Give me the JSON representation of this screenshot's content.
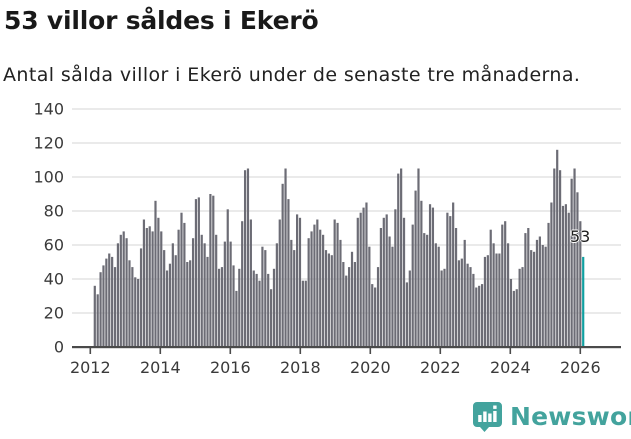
{
  "header": {
    "title": "53 villor såldes i Ekerö",
    "subtitle": "Antal sålda villor i Ekerö under de senaste tre månaderna."
  },
  "chart_data": {
    "type": "bar",
    "title": "53 villor såldes i Ekerö",
    "subtitle": "Antal sålda villor i Ekerö under de senaste tre månaderna.",
    "unit": "sålda villor (rullande tre månader)",
    "x_start": "2012-01",
    "x_end": "2026-02",
    "x_tick_years": [
      2012,
      2014,
      2016,
      2018,
      2020,
      2022,
      2024,
      2026
    ],
    "y_ticks": [
      0,
      20,
      40,
      60,
      80,
      100,
      120,
      140
    ],
    "ylim": [
      0,
      140
    ],
    "grid": true,
    "values": [
      36,
      31,
      44,
      48,
      52,
      55,
      53,
      47,
      61,
      66,
      68,
      64,
      51,
      47,
      41,
      40,
      58,
      75,
      70,
      71,
      68,
      86,
      76,
      68,
      57,
      45,
      49,
      61,
      54,
      69,
      79,
      73,
      50,
      51,
      64,
      87,
      88,
      66,
      61,
      53,
      90,
      89,
      66,
      46,
      47,
      62,
      81,
      62,
      48,
      33,
      46,
      74,
      104,
      105,
      75,
      45,
      43,
      39,
      59,
      57,
      43,
      34,
      46,
      61,
      75,
      96,
      105,
      87,
      63,
      57,
      78,
      76,
      39,
      39,
      64,
      68,
      72,
      75,
      69,
      66,
      57,
      55,
      54,
      75,
      73,
      63,
      50,
      42,
      47,
      56,
      50,
      76,
      79,
      82,
      85,
      59,
      37,
      35,
      47,
      70,
      76,
      78,
      65,
      59,
      81,
      102,
      105,
      76,
      38,
      45,
      72,
      92,
      105,
      86,
      67,
      66,
      84,
      82,
      61,
      59,
      45,
      46,
      79,
      77,
      85,
      70,
      51,
      52,
      63,
      49,
      47,
      43,
      35,
      36,
      37,
      53,
      54,
      69,
      61,
      55,
      55,
      72,
      74,
      61,
      40,
      33,
      34,
      46,
      47,
      67,
      70,
      57,
      56,
      63,
      65,
      60,
      59,
      73,
      85,
      105,
      116,
      104,
      83,
      84,
      79,
      99,
      105,
      91,
      74,
      53
    ],
    "highlight_last": true,
    "annotation": {
      "label": "53",
      "value": 53
    },
    "colors": {
      "bar": "#6c6c75",
      "highlight": "#10a0a1",
      "grid": "#e4e4e4",
      "axis": "#4a4a4a",
      "tick_label": "#3a3a3a"
    },
    "legend": null
  },
  "footer": {
    "brand": "Newsworthy",
    "brand_color": "#43a39d"
  }
}
